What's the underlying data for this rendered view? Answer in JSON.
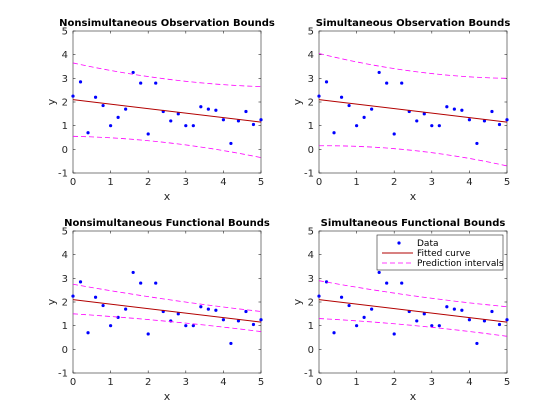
{
  "colors": {
    "data": "#0000ff",
    "fit": "#b20000",
    "bounds": "#ff00ff",
    "axis": "#262626"
  },
  "legend": {
    "data_label": "Data",
    "fit_label": "Fitted curve",
    "bounds_label": "Prediction intervals",
    "placement": "top-right of bottom-right panel"
  },
  "chart_data": [
    {
      "type": "scatter",
      "title": "Nonsimultaneous Observation Bounds",
      "xlabel": "x",
      "ylabel": "y",
      "xlim": [
        0,
        5
      ],
      "ylim": [
        -1,
        5
      ],
      "xticks": [
        "0",
        "1",
        "2",
        "3",
        "4",
        "5"
      ],
      "yticks": [
        "-1",
        "0",
        "1",
        "2",
        "3",
        "4",
        "5"
      ],
      "grid": false,
      "bound_ends": {
        "lower": [
          0.55,
          -0.35
        ],
        "upper": [
          3.65,
          2.65
        ]
      }
    },
    {
      "type": "scatter",
      "title": "Simultaneous Observation Bounds",
      "xlabel": "x",
      "ylabel": "y",
      "xlim": [
        0,
        5
      ],
      "ylim": [
        -1,
        5
      ],
      "xticks": [
        "0",
        "1",
        "2",
        "3",
        "4",
        "5"
      ],
      "yticks": [
        "-1",
        "0",
        "1",
        "2",
        "3",
        "4",
        "5"
      ],
      "grid": false,
      "bound_ends": {
        "lower": [
          0.15,
          -0.7
        ],
        "upper": [
          4.05,
          3.0
        ]
      }
    },
    {
      "type": "scatter",
      "title": "Nonsimultaneous Functional Bounds",
      "xlabel": "x",
      "ylabel": "y",
      "xlim": [
        0,
        5
      ],
      "ylim": [
        -1,
        5
      ],
      "xticks": [
        "0",
        "1",
        "2",
        "3",
        "4",
        "5"
      ],
      "yticks": [
        "-1",
        "0",
        "1",
        "2",
        "3",
        "4",
        "5"
      ],
      "grid": false,
      "bound_ends": {
        "lower": [
          1.5,
          0.75
        ],
        "upper": [
          2.75,
          1.6
        ]
      }
    },
    {
      "type": "scatter",
      "title": "Simultaneous Functional Bounds",
      "xlabel": "x",
      "ylabel": "y",
      "xlim": [
        0,
        5
      ],
      "ylim": [
        -1,
        5
      ],
      "xticks": [
        "0",
        "1",
        "2",
        "3",
        "4",
        "5"
      ],
      "yticks": [
        "-1",
        "0",
        "1",
        "2",
        "3",
        "4",
        "5"
      ],
      "grid": false,
      "bound_ends": {
        "lower": [
          1.3,
          0.55
        ],
        "upper": [
          2.9,
          1.8
        ]
      }
    }
  ],
  "shared_series": {
    "data_points": {
      "x": [
        0.0,
        0.2,
        0.4,
        0.6,
        0.8,
        1.0,
        1.2,
        1.4,
        1.6,
        1.8,
        2.0,
        2.2,
        2.4,
        2.6,
        2.8,
        3.0,
        3.2,
        3.4,
        3.6,
        3.8,
        4.0,
        4.2,
        4.4,
        4.6,
        4.8,
        5.0
      ],
      "y": [
        2.25,
        2.85,
        0.7,
        2.2,
        1.85,
        1.0,
        1.35,
        1.7,
        3.25,
        2.8,
        0.65,
        2.8,
        1.6,
        1.2,
        1.5,
        1.0,
        1.0,
        1.8,
        1.7,
        1.65,
        1.25,
        0.25,
        1.2,
        1.6,
        1.05,
        1.25
      ]
    },
    "fitted_curve": {
      "x": [
        0,
        5
      ],
      "y": [
        2.1,
        1.15
      ]
    }
  }
}
